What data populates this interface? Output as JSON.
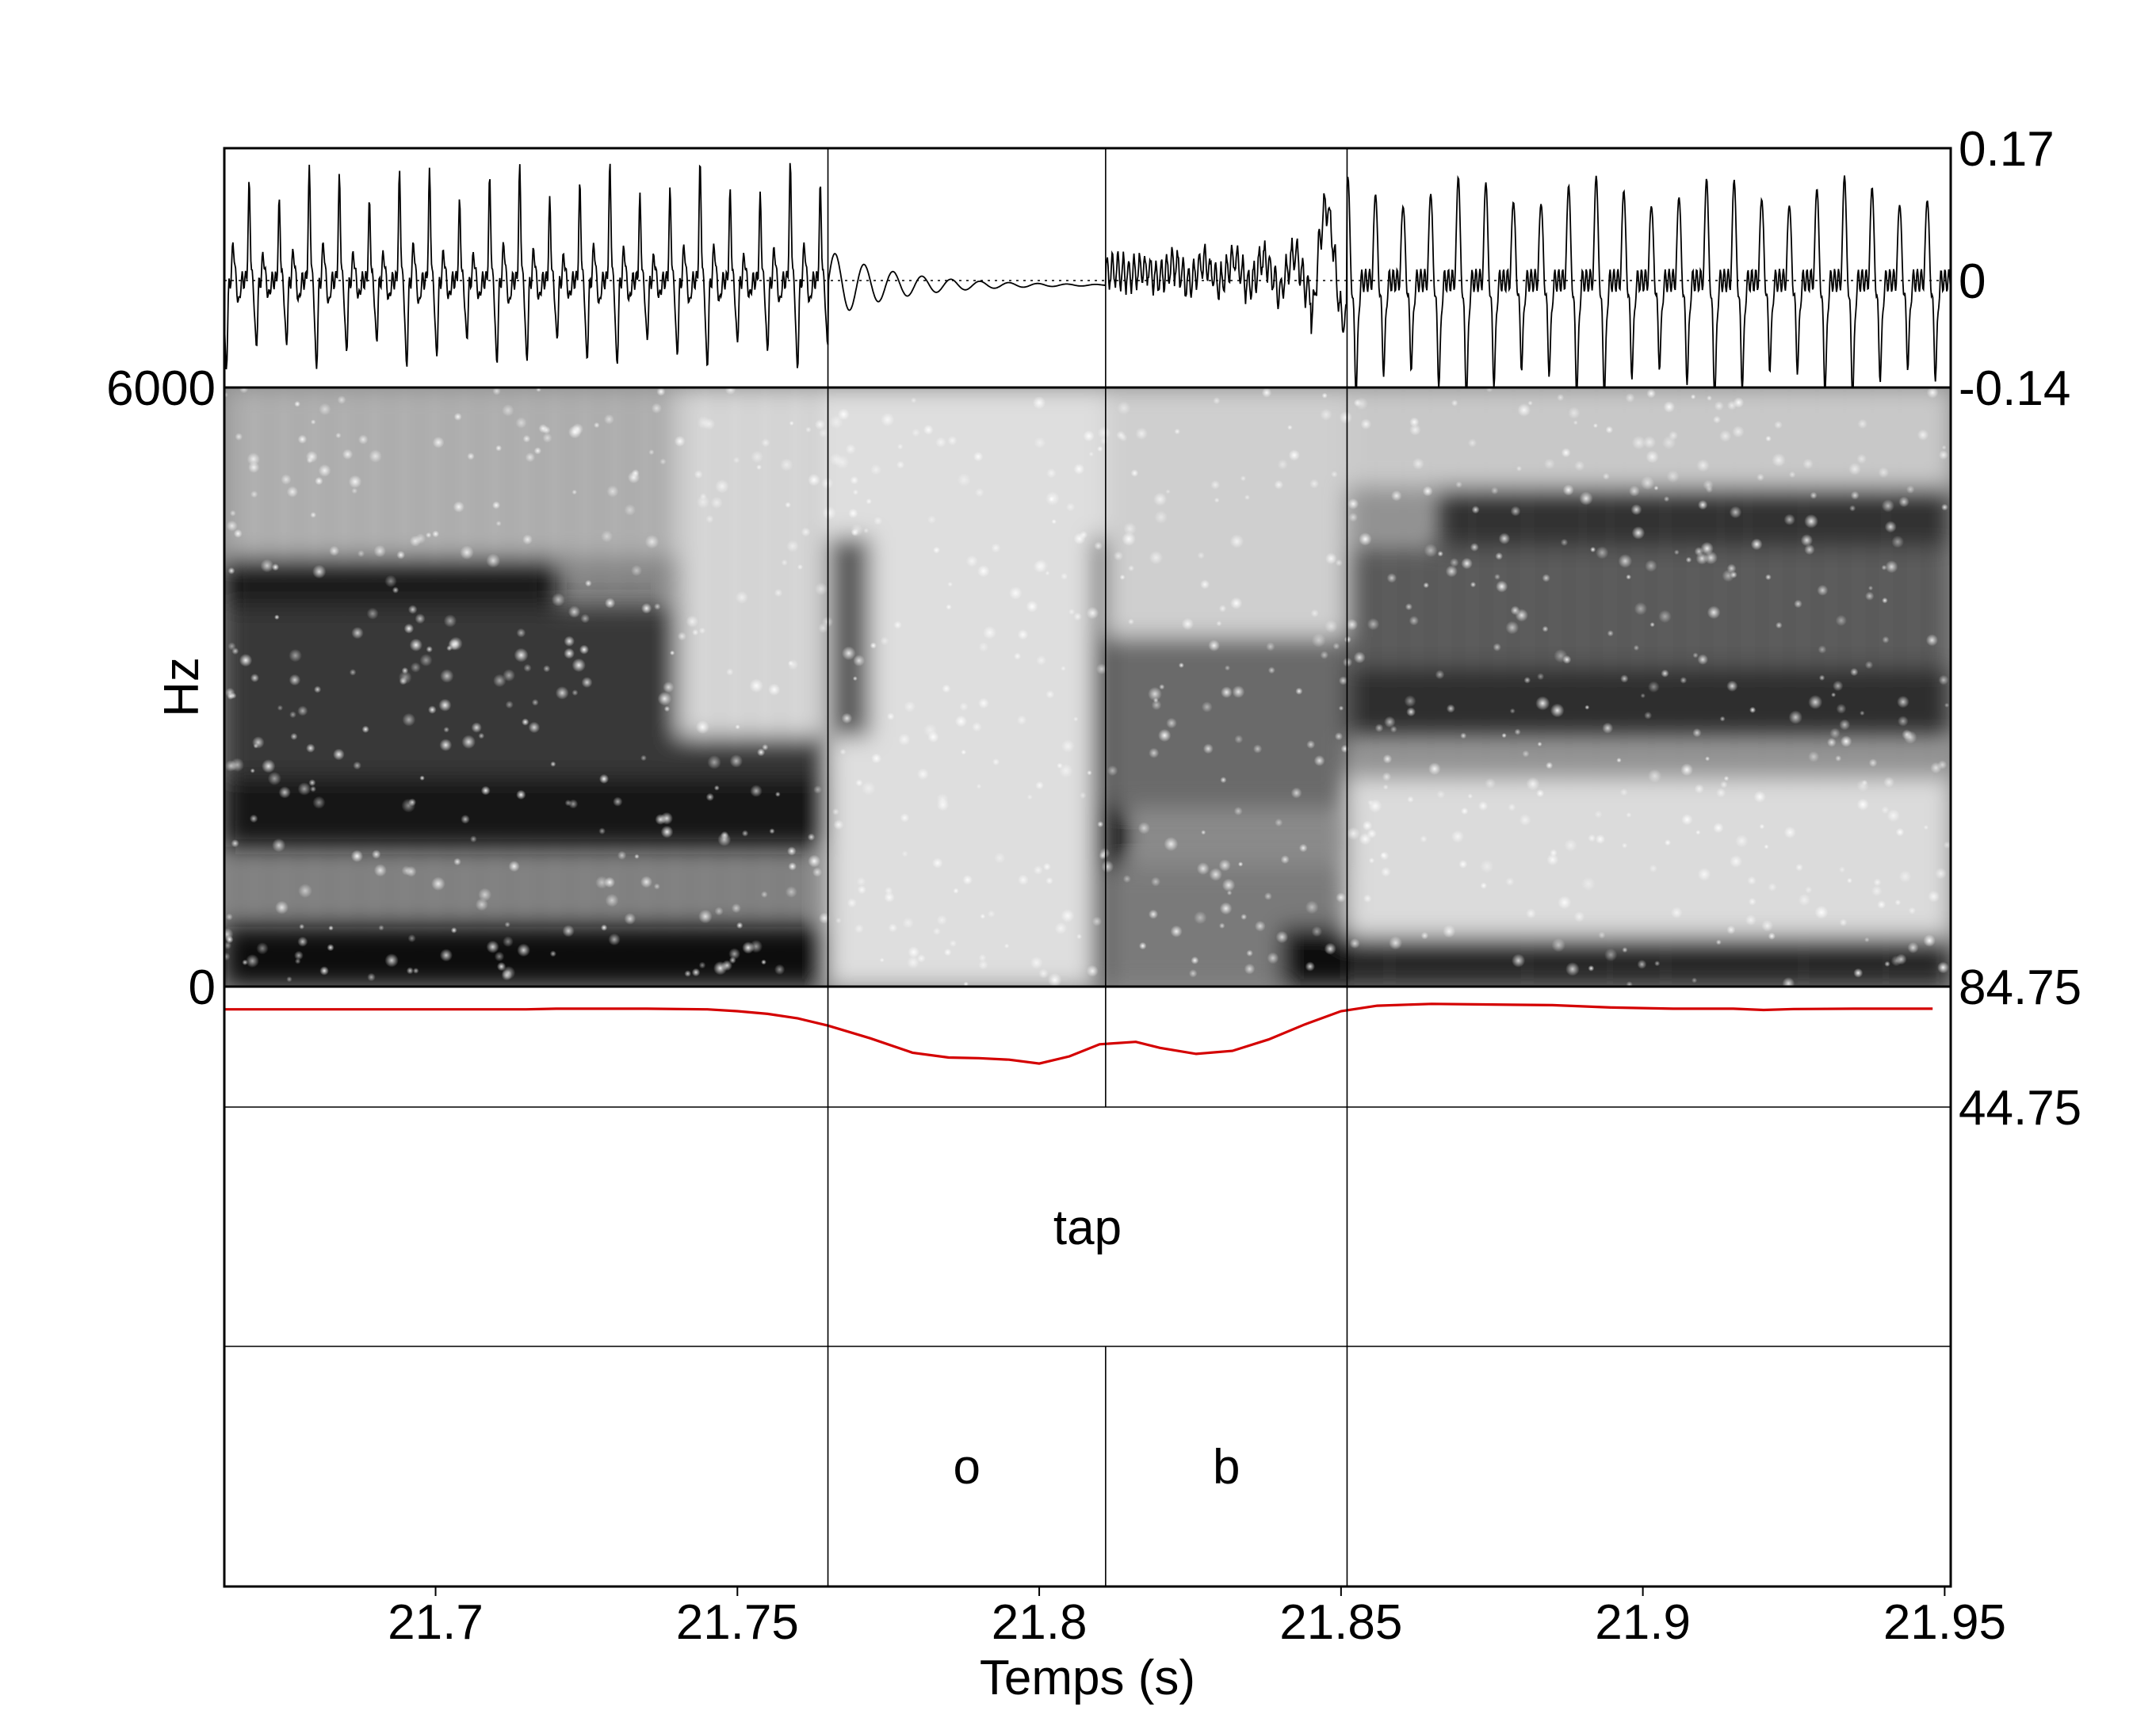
{
  "chart_data": {
    "type": "line",
    "xlabel": "Temps (s)",
    "x_ticks": [
      "21.7",
      "21.75",
      "21.8",
      "21.85",
      "21.9",
      "21.95"
    ],
    "x_tick_values": [
      21.7,
      21.75,
      21.8,
      21.85,
      21.9,
      21.95
    ],
    "xlim": [
      21.665,
      21.951
    ],
    "boundaries": [
      21.765,
      21.811,
      21.851
    ],
    "waveform": {
      "ylim": [
        -0.14,
        0.17
      ],
      "tick_labels": [
        "0.17",
        "0",
        "-0.14"
      ],
      "color": "#000000"
    },
    "spectrogram": {
      "ylabel": "Hz",
      "ylim": [
        0,
        6000
      ],
      "tick_labels": [
        "6000",
        "0"
      ],
      "colormap": "grayscale"
    },
    "intensity": {
      "ylim": [
        44.75,
        84.75
      ],
      "tick_labels": [
        "84.75",
        "44.75"
      ],
      "color": "#d40000",
      "points": [
        [
          21.665,
          77.2
        ],
        [
          21.68,
          77.2
        ],
        [
          21.7,
          77.2
        ],
        [
          21.715,
          77.2
        ],
        [
          21.72,
          77.4
        ],
        [
          21.735,
          77.4
        ],
        [
          21.745,
          77.2
        ],
        [
          21.75,
          76.6
        ],
        [
          21.755,
          75.7
        ],
        [
          21.76,
          74.2
        ],
        [
          21.765,
          71.8
        ],
        [
          21.772,
          67.6
        ],
        [
          21.779,
          62.8
        ],
        [
          21.785,
          61.2
        ],
        [
          21.79,
          61.0
        ],
        [
          21.795,
          60.5
        ],
        [
          21.8,
          59.2
        ],
        [
          21.805,
          61.6
        ],
        [
          21.81,
          65.6
        ],
        [
          21.816,
          66.4
        ],
        [
          21.82,
          64.4
        ],
        [
          21.826,
          62.4
        ],
        [
          21.832,
          63.4
        ],
        [
          21.838,
          67.2
        ],
        [
          21.844,
          72.2
        ],
        [
          21.85,
          76.6
        ],
        [
          21.856,
          78.4
        ],
        [
          21.865,
          79.0
        ],
        [
          21.875,
          78.8
        ],
        [
          21.885,
          78.6
        ],
        [
          21.895,
          77.8
        ],
        [
          21.905,
          77.4
        ],
        [
          21.915,
          77.4
        ],
        [
          21.92,
          77.0
        ],
        [
          21.925,
          77.3
        ],
        [
          21.935,
          77.4
        ],
        [
          21.948,
          77.4
        ]
      ]
    },
    "tiers": [
      {
        "name": "",
        "intervals": [
          {
            "start": 21.765,
            "end": 21.851,
            "label": "tap"
          }
        ]
      },
      {
        "name": "",
        "intervals": [
          {
            "start": 21.765,
            "end": 21.811,
            "label": "o"
          },
          {
            "start": 21.811,
            "end": 21.851,
            "label": "b"
          }
        ]
      }
    ]
  }
}
